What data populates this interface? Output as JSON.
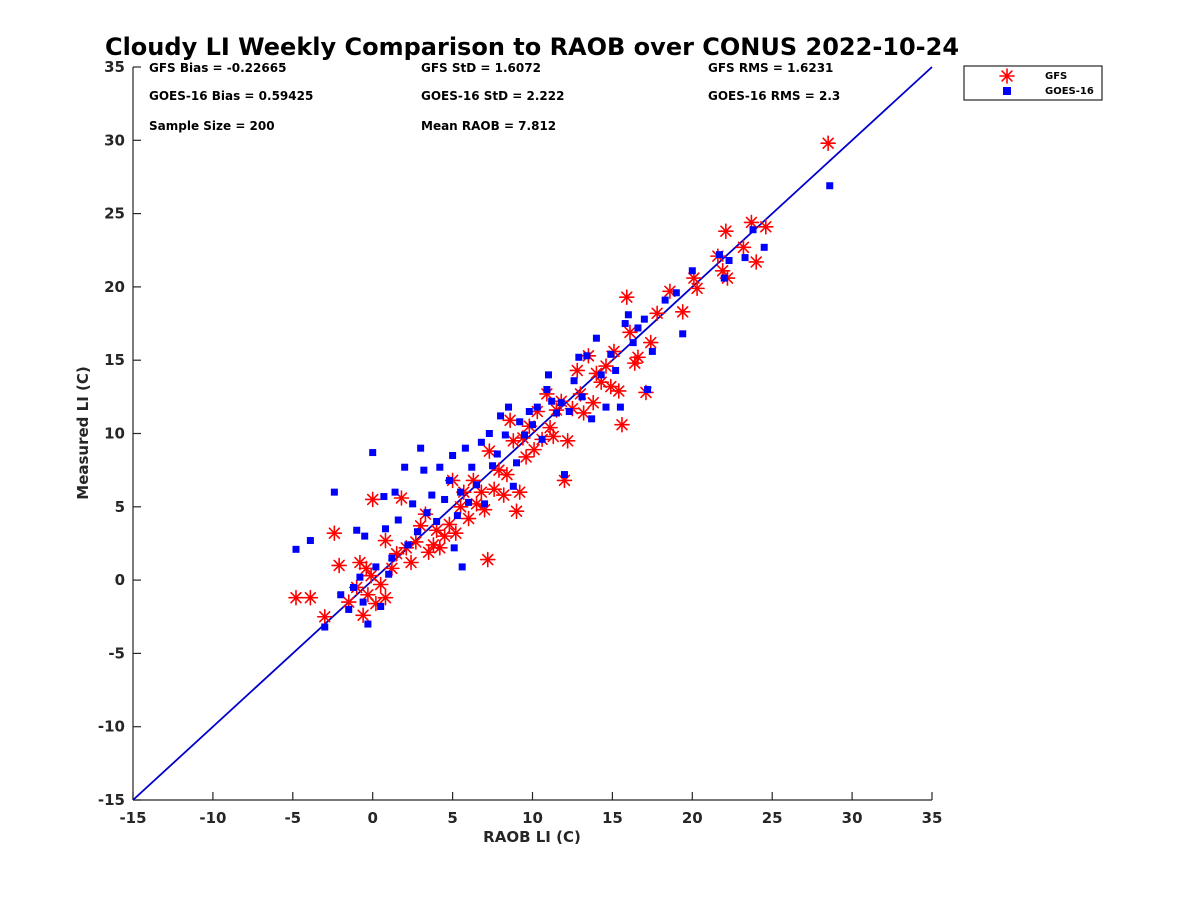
{
  "chart_data": {
    "type": "scatter",
    "title": "Cloudy LI Weekly Comparison to RAOB over CONUS 2022-10-24",
    "xlabel": "RAOB LI (C)",
    "ylabel": "Measured LI (C)",
    "xlim": [
      -15,
      35
    ],
    "ylim": [
      -15,
      35
    ],
    "xticks": [
      -15,
      -10,
      -5,
      0,
      5,
      10,
      15,
      20,
      25,
      30,
      35
    ],
    "yticks": [
      -15,
      -10,
      -5,
      0,
      5,
      10,
      15,
      20,
      25,
      30,
      35
    ],
    "xtick_labels": [
      "-15",
      "-10",
      "-5",
      "0",
      "5",
      "10",
      "15",
      "20",
      "25",
      "30",
      "35"
    ],
    "ytick_labels": [
      "-15",
      "-10",
      "-5",
      "0",
      "5",
      "10",
      "15",
      "20",
      "25",
      "30",
      "35"
    ],
    "grid": false,
    "legend_position": "outside top-right",
    "reference_line": {
      "x": [
        -15,
        35
      ],
      "y": [
        -15,
        35
      ],
      "color": "#0000cc"
    },
    "stats": {
      "gfs_bias": "GFS Bias = -0.22665",
      "gfs_std": "GFS StD = 1.6072",
      "gfs_rms": "GFS RMS = 1.6231",
      "goes_bias": "GOES-16 Bias = 0.59425",
      "goes_std": "GOES-16 StD = 2.222",
      "goes_rms": "GOES-16 RMS = 2.3",
      "sample_size": "Sample Size = 200",
      "mean_raob": "Mean RAOB = 7.812"
    },
    "series": [
      {
        "name": "GFS",
        "marker": "asterisk",
        "color": "#ff0000",
        "points": [
          [
            -4.8,
            -1.2
          ],
          [
            -3.9,
            -1.2
          ],
          [
            -3.0,
            -2.5
          ],
          [
            -2.4,
            3.2
          ],
          [
            -2.1,
            1.0
          ],
          [
            -1.5,
            -1.5
          ],
          [
            -1.0,
            -0.5
          ],
          [
            -0.8,
            1.2
          ],
          [
            -0.6,
            -2.4
          ],
          [
            -0.4,
            0.8
          ],
          [
            -0.3,
            -1.0
          ],
          [
            -0.1,
            0.3
          ],
          [
            0.0,
            5.5
          ],
          [
            0.2,
            -1.6
          ],
          [
            0.5,
            -0.3
          ],
          [
            0.8,
            2.7
          ],
          [
            0.8,
            -1.2
          ],
          [
            1.2,
            0.8
          ],
          [
            1.5,
            1.8
          ],
          [
            1.8,
            5.6
          ],
          [
            2.1,
            2.2
          ],
          [
            2.4,
            1.2
          ],
          [
            2.7,
            2.6
          ],
          [
            3.0,
            3.7
          ],
          [
            3.3,
            4.5
          ],
          [
            3.5,
            1.9
          ],
          [
            3.8,
            2.4
          ],
          [
            4.0,
            3.4
          ],
          [
            4.2,
            2.2
          ],
          [
            4.5,
            3.0
          ],
          [
            4.8,
            3.8
          ],
          [
            5.0,
            6.8
          ],
          [
            5.2,
            3.2
          ],
          [
            5.5,
            5.0
          ],
          [
            5.7,
            6.0
          ],
          [
            6.0,
            4.2
          ],
          [
            6.3,
            6.8
          ],
          [
            6.5,
            5.2
          ],
          [
            6.8,
            6.0
          ],
          [
            7.0,
            4.8
          ],
          [
            7.2,
            1.4
          ],
          [
            7.3,
            8.8
          ],
          [
            7.6,
            6.2
          ],
          [
            7.9,
            7.5
          ],
          [
            8.2,
            5.8
          ],
          [
            8.4,
            7.2
          ],
          [
            8.6,
            10.9
          ],
          [
            8.8,
            9.5
          ],
          [
            9.0,
            4.7
          ],
          [
            9.2,
            6.0
          ],
          [
            9.4,
            9.7
          ],
          [
            9.6,
            8.4
          ],
          [
            9.8,
            10.5
          ],
          [
            10.1,
            8.9
          ],
          [
            10.3,
            11.5
          ],
          [
            10.6,
            9.6
          ],
          [
            10.9,
            12.7
          ],
          [
            11.1,
            10.4
          ],
          [
            11.3,
            9.8
          ],
          [
            11.5,
            11.6
          ],
          [
            11.8,
            12.2
          ],
          [
            12.0,
            6.8
          ],
          [
            12.2,
            9.5
          ],
          [
            12.5,
            11.7
          ],
          [
            12.8,
            14.3
          ],
          [
            13.0,
            12.7
          ],
          [
            13.2,
            11.4
          ],
          [
            13.5,
            15.3
          ],
          [
            13.8,
            12.1
          ],
          [
            14.0,
            14.1
          ],
          [
            14.3,
            13.5
          ],
          [
            14.6,
            14.6
          ],
          [
            14.9,
            13.2
          ],
          [
            15.1,
            15.6
          ],
          [
            15.4,
            12.9
          ],
          [
            15.6,
            10.6
          ],
          [
            15.9,
            19.3
          ],
          [
            16.1,
            16.9
          ],
          [
            16.4,
            14.8
          ],
          [
            16.6,
            15.2
          ],
          [
            17.1,
            12.8
          ],
          [
            17.4,
            16.2
          ],
          [
            17.8,
            18.2
          ],
          [
            18.6,
            19.7
          ],
          [
            19.4,
            18.3
          ],
          [
            20.1,
            20.6
          ],
          [
            20.3,
            19.9
          ],
          [
            21.6,
            22.1
          ],
          [
            21.9,
            21.1
          ],
          [
            22.1,
            23.8
          ],
          [
            22.2,
            20.6
          ],
          [
            23.2,
            22.7
          ],
          [
            23.7,
            24.4
          ],
          [
            24.0,
            21.7
          ],
          [
            24.6,
            24.1
          ],
          [
            28.5,
            29.8
          ]
        ]
      },
      {
        "name": "GOES-16",
        "marker": "square",
        "color": "#0000ff",
        "points": [
          [
            -4.8,
            2.1
          ],
          [
            -3.9,
            2.7
          ],
          [
            -3.0,
            -3.2
          ],
          [
            -2.4,
            6.0
          ],
          [
            -2.0,
            -1.0
          ],
          [
            -1.5,
            -2.0
          ],
          [
            -1.2,
            -0.5
          ],
          [
            -1.0,
            3.4
          ],
          [
            -0.8,
            0.2
          ],
          [
            -0.6,
            -1.5
          ],
          [
            -0.5,
            3.0
          ],
          [
            -0.3,
            -3.0
          ],
          [
            0.0,
            8.7
          ],
          [
            0.2,
            0.9
          ],
          [
            0.5,
            -1.8
          ],
          [
            0.7,
            5.7
          ],
          [
            0.8,
            3.5
          ],
          [
            1.0,
            0.4
          ],
          [
            1.2,
            1.5
          ],
          [
            1.4,
            6.0
          ],
          [
            1.6,
            4.1
          ],
          [
            2.0,
            7.7
          ],
          [
            2.2,
            2.4
          ],
          [
            2.5,
            5.2
          ],
          [
            2.8,
            3.3
          ],
          [
            3.0,
            9.0
          ],
          [
            3.2,
            7.5
          ],
          [
            3.4,
            4.6
          ],
          [
            3.7,
            5.8
          ],
          [
            4.0,
            4.0
          ],
          [
            4.2,
            7.7
          ],
          [
            4.5,
            5.5
          ],
          [
            4.8,
            6.8
          ],
          [
            5.0,
            8.5
          ],
          [
            5.1,
            2.2
          ],
          [
            5.3,
            4.4
          ],
          [
            5.5,
            6.0
          ],
          [
            5.6,
            0.9
          ],
          [
            5.8,
            9.0
          ],
          [
            6.0,
            5.3
          ],
          [
            6.2,
            7.7
          ],
          [
            6.5,
            6.5
          ],
          [
            6.8,
            9.4
          ],
          [
            7.0,
            5.2
          ],
          [
            7.3,
            10.0
          ],
          [
            7.5,
            7.8
          ],
          [
            7.8,
            8.6
          ],
          [
            8.0,
            11.2
          ],
          [
            8.3,
            9.9
          ],
          [
            8.5,
            11.8
          ],
          [
            8.8,
            6.4
          ],
          [
            9.0,
            8.0
          ],
          [
            9.2,
            10.8
          ],
          [
            9.5,
            9.9
          ],
          [
            9.8,
            11.5
          ],
          [
            10.0,
            10.6
          ],
          [
            10.3,
            11.8
          ],
          [
            10.6,
            9.6
          ],
          [
            10.9,
            13.0
          ],
          [
            11.0,
            14.0
          ],
          [
            11.2,
            12.2
          ],
          [
            11.5,
            11.4
          ],
          [
            11.8,
            12.1
          ],
          [
            12.0,
            7.2
          ],
          [
            12.3,
            11.5
          ],
          [
            12.6,
            13.6
          ],
          [
            12.9,
            15.2
          ],
          [
            13.1,
            12.5
          ],
          [
            13.4,
            15.3
          ],
          [
            13.7,
            11.0
          ],
          [
            14.0,
            16.5
          ],
          [
            14.3,
            14.0
          ],
          [
            14.6,
            11.8
          ],
          [
            14.9,
            15.4
          ],
          [
            15.2,
            14.3
          ],
          [
            15.5,
            11.8
          ],
          [
            15.8,
            17.5
          ],
          [
            16.0,
            18.1
          ],
          [
            16.3,
            16.2
          ],
          [
            16.6,
            17.2
          ],
          [
            17.0,
            17.8
          ],
          [
            17.2,
            13.0
          ],
          [
            17.5,
            15.6
          ],
          [
            18.3,
            19.1
          ],
          [
            19.0,
            19.6
          ],
          [
            19.4,
            16.8
          ],
          [
            20.0,
            21.1
          ],
          [
            21.7,
            22.2
          ],
          [
            22.0,
            20.6
          ],
          [
            22.3,
            21.8
          ],
          [
            23.3,
            22.0
          ],
          [
            23.8,
            23.9
          ],
          [
            24.5,
            22.7
          ],
          [
            28.6,
            26.9
          ]
        ]
      }
    ]
  }
}
